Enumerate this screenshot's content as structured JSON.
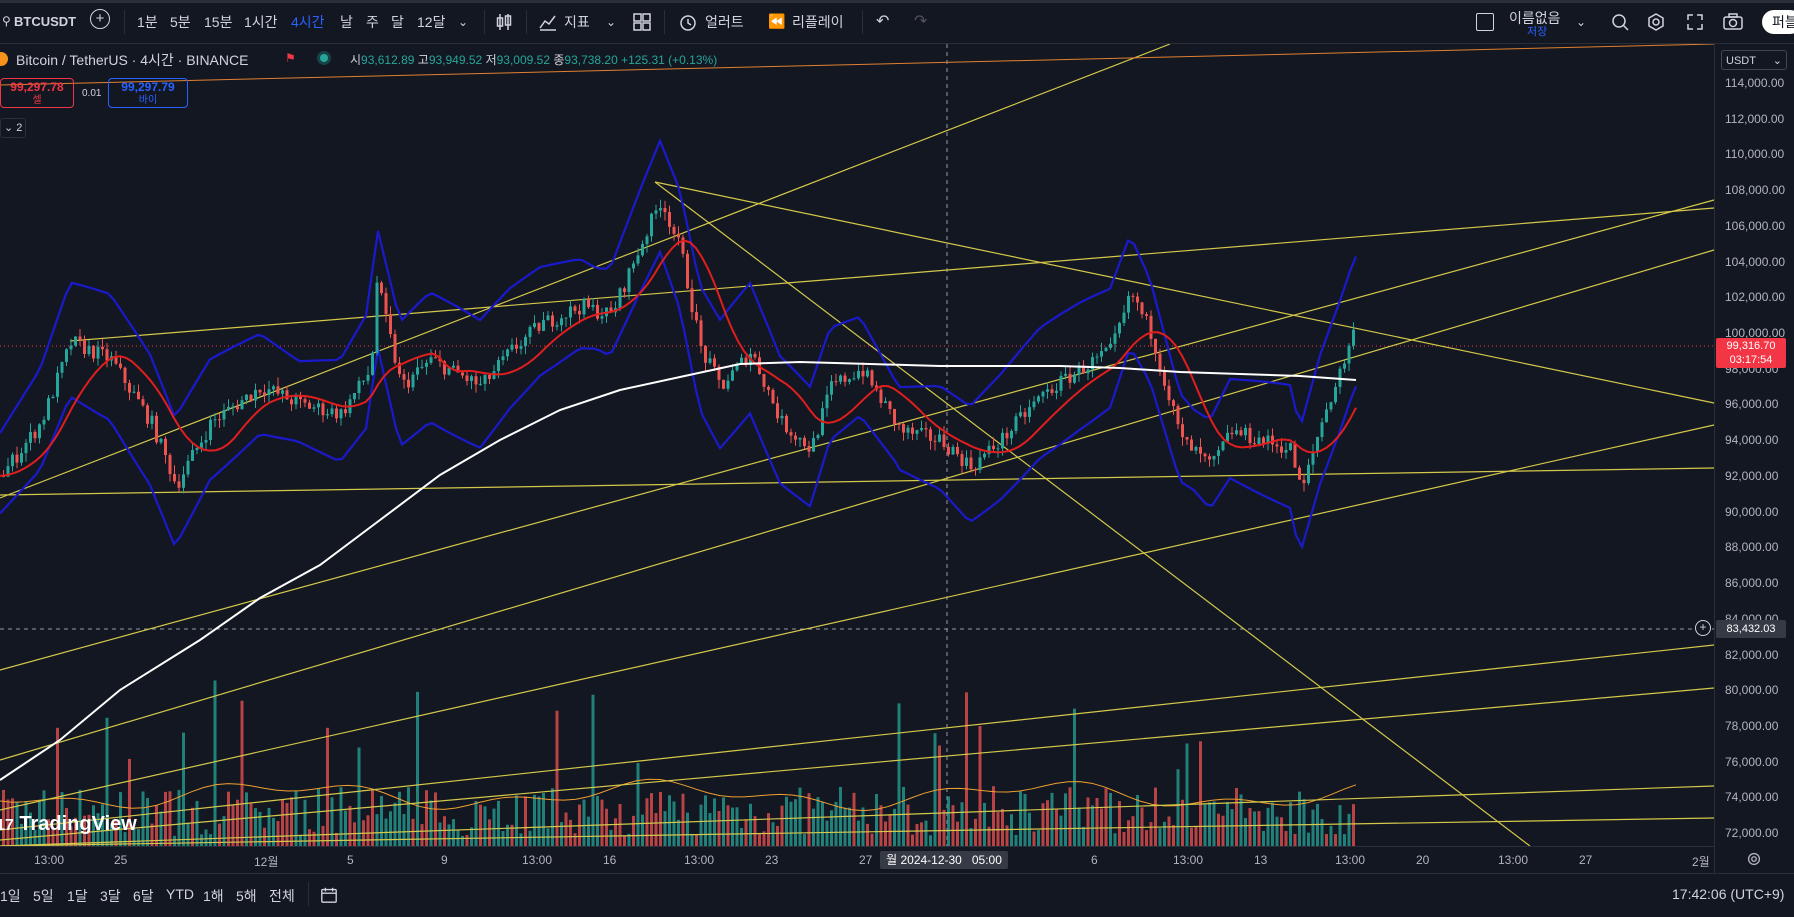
{
  "toolbar": {
    "symbol": "BTCUSDT",
    "intervals": [
      "1분",
      "5분",
      "15분",
      "1시간",
      "4시간",
      "날",
      "주",
      "달",
      "12달"
    ],
    "active_interval": "4시간",
    "indicators_label": "지표",
    "alert_label": "얼러트",
    "replay_label": "리플레이",
    "layout_name": "이름없음",
    "layout_sub": "저장",
    "publish_label": "퍼블"
  },
  "legend": {
    "title": "Bitcoin / TetherUS · 4시간 · BINANCE",
    "open_label": "시",
    "open": "93,612.89",
    "high_label": "고",
    "high": "93,949.52",
    "low_label": "저",
    "low": "93,009.52",
    "close_label": "종",
    "close": "93,738.20",
    "change": "+125.31 (+0.13%)",
    "sell_price": "99,297.78",
    "sell_label": "셀",
    "spread": "0.01",
    "buy_price": "99,297.79",
    "buy_label": "바이",
    "indicator_count": "2"
  },
  "price_axis": {
    "currency": "USDT",
    "ticks": [
      "114,000.00",
      "112,000.00",
      "110,000.00",
      "108,000.00",
      "106,000.00",
      "104,000.00",
      "102,000.00",
      "100,000.00",
      "98,000.00",
      "96,000.00",
      "94,000.00",
      "92,000.00",
      "90,000.00",
      "88,000.00",
      "86,000.00",
      "84,000.00",
      "82,000.00",
      "80,000.00",
      "78,000.00",
      "76,000.00",
      "74,000.00",
      "72,000.00"
    ],
    "current_price": "99,316.70",
    "countdown": "03:17:54",
    "crosshair_price": "83,432.03"
  },
  "time_axis": {
    "labels": [
      {
        "t": "13:00",
        "x": 48
      },
      {
        "t": "25",
        "x": 128
      },
      {
        "t": "12월",
        "x": 268
      },
      {
        "t": "5",
        "x": 361
      },
      {
        "t": "9",
        "x": 455
      },
      {
        "t": "13:00",
        "x": 536
      },
      {
        "t": "16",
        "x": 617
      },
      {
        "t": "13:00",
        "x": 698
      },
      {
        "t": "23",
        "x": 779
      },
      {
        "t": "27",
        "x": 873
      },
      {
        "t": "6",
        "x": 1105
      },
      {
        "t": "13:00",
        "x": 1187
      },
      {
        "t": "13",
        "x": 1268
      },
      {
        "t": "13:00",
        "x": 1349
      },
      {
        "t": "20",
        "x": 1430
      },
      {
        "t": "13:00",
        "x": 1512
      },
      {
        "t": "27",
        "x": 1593
      },
      {
        "t": "2월",
        "x": 1706
      }
    ],
    "crosshair_time": "월 2024-12-30   05:00"
  },
  "bottom": {
    "ranges": [
      "1일",
      "5일",
      "1달",
      "3달",
      "6달",
      "YTD",
      "1해",
      "5해",
      "전체"
    ],
    "clock": "17:42:06 (UTC+9)"
  },
  "watermark": "TradingView",
  "colors": {
    "up": "#26a69a",
    "down": "#ef5350",
    "bb": "#1a1acc",
    "ma": "#e01e1e",
    "ma200": "#ffffff",
    "trend": "#d4c84a",
    "accent": "#2962ff"
  }
}
